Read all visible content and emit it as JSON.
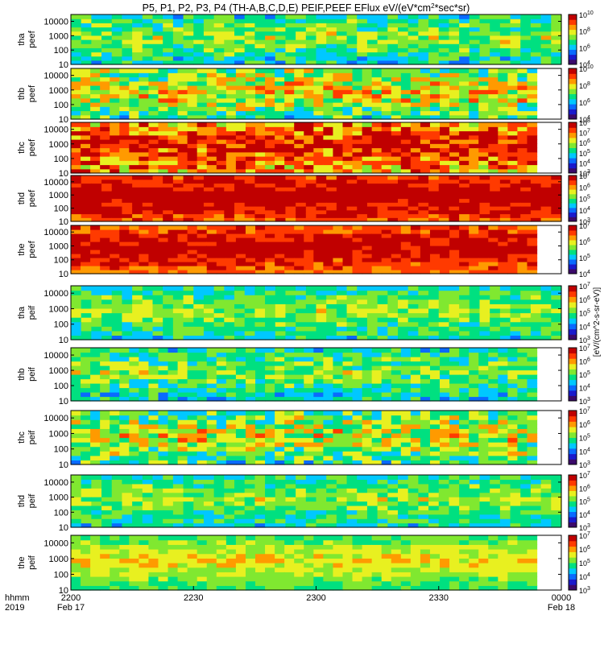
{
  "chart_data": {
    "type": "heatmap",
    "title": "P5, P1, P2, P3, P4 (TH-A,B,C,D,E) PEIF,PEEF EFlux eV/(eV*cm²*sec*sr)",
    "title_parts": {
      "main": "P5, P1, P2, P3, P4 (TH-A,B,C,D,E) PEIF,PEEF EFlux eV/(eV*cm",
      "sup": "2",
      "tail": "*sec*sr)"
    },
    "colormap": [
      "#3b0a6b",
      "#1a1acc",
      "#0a6aff",
      "#00c8ff",
      "#00e080",
      "#80e830",
      "#e8f020",
      "#ff9a00",
      "#ff3a00",
      "#c00000"
    ],
    "colorbar_unit_label": "[eV/(cm^2-s-sr-eV)]",
    "x_axis": {
      "row_labels": [
        "hhmm",
        "2019"
      ],
      "ticks": [
        {
          "label": "2200",
          "sub": "Feb 17"
        },
        {
          "label": "2230",
          "sub": ""
        },
        {
          "label": "2300",
          "sub": ""
        },
        {
          "label": "2330",
          "sub": ""
        },
        {
          "label": "0000",
          "sub": "Feb 18"
        }
      ],
      "range_minutes": [
        0,
        120
      ]
    },
    "y_axis": {
      "scale": "log",
      "range": [
        10,
        30000
      ],
      "ticks": [
        "10",
        "100",
        "1000",
        "10000"
      ]
    },
    "panels": [
      {
        "probe": "tha",
        "product": "peef",
        "data_end": 120,
        "level": 0.42,
        "variability": 0.15,
        "cb_min_exp": "4",
        "cb_max_exp": "10",
        "cb_mid": [
          "6",
          "8"
        ]
      },
      {
        "probe": "thb",
        "product": "peef",
        "data_end": 114,
        "level": 0.5,
        "variability": 0.2,
        "cb_min_exp": "4",
        "cb_max_exp": "10",
        "cb_mid": [
          "6",
          "8"
        ]
      },
      {
        "probe": "thc",
        "product": "peef",
        "data_end": 114,
        "level": 0.75,
        "variability": 0.2,
        "cb_min_exp": "3",
        "cb_max_exp": "8",
        "cb_mid": [
          "4",
          "5",
          "6",
          "7"
        ]
      },
      {
        "probe": "thd",
        "product": "peef",
        "data_end": 120,
        "level": 0.85,
        "variability": 0.1,
        "cb_min_exp": "3",
        "cb_max_exp": "7",
        "cb_mid": [
          "4",
          "5",
          "6"
        ]
      },
      {
        "probe": "the",
        "product": "peef",
        "data_end": 114,
        "level": 0.82,
        "variability": 0.1,
        "cb_min_exp": "4",
        "cb_max_exp": "7",
        "cb_mid": [
          "5",
          "6"
        ]
      },
      {
        "probe": "tha",
        "product": "peif",
        "data_end": 120,
        "level": 0.42,
        "variability": 0.12,
        "cb_min_exp": "3",
        "cb_max_exp": "7",
        "cb_mid": [
          "4",
          "5",
          "6"
        ]
      },
      {
        "probe": "thb",
        "product": "peif",
        "data_end": 114,
        "level": 0.4,
        "variability": 0.15,
        "cb_min_exp": "3",
        "cb_max_exp": "7",
        "cb_mid": [
          "4",
          "5",
          "6"
        ]
      },
      {
        "probe": "thc",
        "product": "peif",
        "data_end": 114,
        "level": 0.48,
        "variability": 0.2,
        "cb_min_exp": "3",
        "cb_max_exp": "7",
        "cb_mid": [
          "4",
          "5",
          "6"
        ]
      },
      {
        "probe": "thd",
        "product": "peif",
        "data_end": 120,
        "level": 0.42,
        "variability": 0.12,
        "cb_min_exp": "3",
        "cb_max_exp": "7",
        "cb_mid": [
          "4",
          "5",
          "6"
        ]
      },
      {
        "probe": "the",
        "product": "peif",
        "data_end": 114,
        "level": 0.5,
        "variability": 0.08,
        "cb_min_exp": "3",
        "cb_max_exp": "7",
        "cb_mid": [
          "4",
          "5",
          "6"
        ]
      }
    ]
  }
}
